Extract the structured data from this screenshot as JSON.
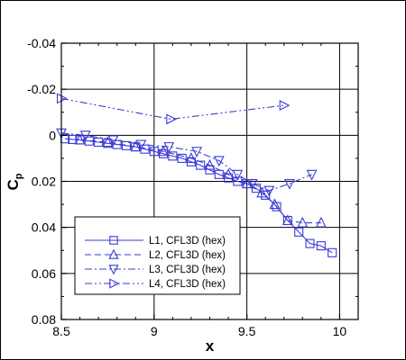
{
  "chart_data": {
    "type": "line",
    "xlabel": "x",
    "ylabel": "C",
    "ylabel_subscript": "p",
    "xlim": [
      8.5,
      10.1
    ],
    "ylim": [
      0.08,
      -0.04
    ],
    "y_inverted": true,
    "grid": true,
    "x_ticks": [
      8.5,
      9,
      9.5,
      10
    ],
    "x_tick_labels": [
      "8.5",
      "9",
      "9.5",
      "10"
    ],
    "y_ticks": [
      -0.04,
      -0.02,
      0,
      0.02,
      0.04,
      0.06,
      0.08
    ],
    "y_tick_labels": [
      "-0.04",
      "-0.02",
      "0",
      "0.02",
      "0.04",
      "0.06",
      "0.08"
    ],
    "legend_position": "bottom-left",
    "line_color": "#3a3ad6",
    "series": [
      {
        "name": "L1, CFL3D (hex)",
        "marker": "square",
        "dash": "solid",
        "points": [
          [
            8.52,
            0.0015
          ],
          [
            8.56,
            0.0018
          ],
          [
            8.6,
            0.002
          ],
          [
            8.65,
            0.0025
          ],
          [
            8.7,
            0.003
          ],
          [
            8.75,
            0.0035
          ],
          [
            8.8,
            0.004
          ],
          [
            8.85,
            0.0045
          ],
          [
            8.9,
            0.005
          ],
          [
            8.95,
            0.006
          ],
          [
            9.0,
            0.007
          ],
          [
            9.05,
            0.008
          ],
          [
            9.1,
            0.009
          ],
          [
            9.15,
            0.01
          ],
          [
            9.2,
            0.0115
          ],
          [
            9.25,
            0.013
          ],
          [
            9.3,
            0.015
          ],
          [
            9.35,
            0.017
          ],
          [
            9.4,
            0.0185
          ],
          [
            9.45,
            0.02
          ],
          [
            9.5,
            0.021
          ],
          [
            9.55,
            0.023
          ],
          [
            9.6,
            0.026
          ],
          [
            9.66,
            0.031
          ],
          [
            9.72,
            0.037
          ],
          [
            9.78,
            0.042
          ],
          [
            9.84,
            0.047
          ],
          [
            9.9,
            0.048
          ],
          [
            9.96,
            0.051
          ]
        ]
      },
      {
        "name": "L2, CFL3D (hex)",
        "marker": "triangle-up",
        "dash": "dashed",
        "points": [
          [
            8.6,
            0.002
          ],
          [
            8.75,
            0.003
          ],
          [
            8.9,
            0.005
          ],
          [
            9.05,
            0.007
          ],
          [
            9.2,
            0.01
          ],
          [
            9.3,
            0.013
          ],
          [
            9.4,
            0.017
          ],
          [
            9.5,
            0.021
          ],
          [
            9.58,
            0.025
          ],
          [
            9.65,
            0.03
          ],
          [
            9.72,
            0.037
          ],
          [
            9.8,
            0.038
          ],
          [
            9.9,
            0.038
          ]
        ]
      },
      {
        "name": "L3, CFL3D (hex)",
        "marker": "triangle-down",
        "dash": "dashdot",
        "points": [
          [
            8.5,
            -0.001
          ],
          [
            8.63,
            0.0
          ],
          [
            8.78,
            0.002
          ],
          [
            8.93,
            0.004
          ],
          [
            9.08,
            0.005
          ],
          [
            9.23,
            0.007
          ],
          [
            9.35,
            0.011
          ],
          [
            9.45,
            0.017
          ],
          [
            9.53,
            0.021
          ],
          [
            9.62,
            0.024
          ],
          [
            9.73,
            0.021
          ],
          [
            9.85,
            0.017
          ]
        ]
      },
      {
        "name": "L4, CFL3D (hex)",
        "marker": "triangle-right",
        "dash": "dashdotdot",
        "points": [
          [
            8.5,
            -0.016
          ],
          [
            9.09,
            -0.007
          ],
          [
            9.7,
            -0.013
          ]
        ]
      }
    ]
  }
}
